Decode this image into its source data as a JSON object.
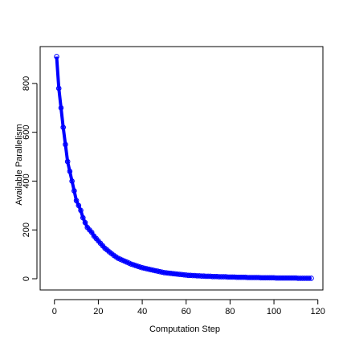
{
  "chart_data": {
    "type": "line",
    "x_label": "Computation Step",
    "y_label": "Available Parallelism",
    "x": [
      1,
      2,
      3,
      4,
      5,
      6,
      7,
      8,
      9,
      10,
      11,
      12,
      13,
      14,
      15,
      16,
      17,
      18,
      19,
      20,
      21,
      22,
      23,
      24,
      25,
      26,
      27,
      28,
      29,
      30,
      31,
      32,
      33,
      34,
      35,
      36,
      37,
      38,
      39,
      40,
      41,
      42,
      43,
      44,
      45,
      46,
      47,
      48,
      49,
      50,
      51,
      52,
      53,
      54,
      55,
      56,
      57,
      58,
      59,
      60,
      61,
      62,
      63,
      64,
      65,
      66,
      67,
      68,
      69,
      70,
      71,
      72,
      73,
      74,
      75,
      76,
      77,
      78,
      79,
      80,
      81,
      82,
      83,
      84,
      85,
      86,
      87,
      88,
      89,
      90,
      91,
      92,
      93,
      94,
      95,
      96,
      97,
      98,
      99,
      100,
      101,
      102,
      103,
      104,
      105,
      106,
      107,
      108,
      109,
      110,
      111,
      112,
      113,
      114,
      115,
      116,
      117
    ],
    "series": [
      {
        "color": "#0000ff",
        "values": [
          910,
          780,
          700,
          620,
          550,
          480,
          440,
          400,
          360,
          320,
          300,
          280,
          250,
          230,
          210,
          200,
          190,
          175,
          165,
          155,
          145,
          135,
          125,
          118,
          110,
          103,
          96,
          90,
          84,
          80,
          76,
          72,
          68,
          64,
          60,
          57,
          54,
          51,
          48,
          45,
          43,
          41,
          39,
          37,
          35,
          33,
          31,
          29,
          27,
          25,
          24,
          23,
          22,
          21,
          20,
          19,
          18,
          17,
          16,
          15,
          14,
          14,
          13,
          13,
          12,
          12,
          11,
          11,
          10,
          10,
          10,
          9,
          9,
          9,
          8,
          8,
          8,
          8,
          7,
          7,
          7,
          7,
          6,
          6,
          6,
          6,
          6,
          5,
          5,
          5,
          5,
          5,
          5,
          4,
          4,
          4,
          4,
          4,
          4,
          4,
          3,
          3,
          3,
          3,
          3,
          3,
          3,
          3,
          3,
          3,
          2,
          2,
          2,
          2,
          2,
          2,
          2
        ]
      }
    ],
    "xlim": [
      -6.5,
      122.3
    ],
    "ylim": [
      -46,
      951
    ],
    "xticks": [
      0,
      20,
      40,
      60,
      80,
      100,
      120
    ],
    "yticks": [
      0,
      200,
      400,
      600,
      800
    ],
    "markers": true
  }
}
